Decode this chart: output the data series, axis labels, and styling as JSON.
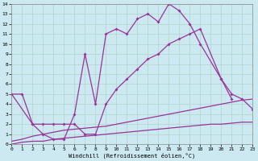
{
  "xlabel": "Windchill (Refroidissement éolien,°C)",
  "xlim": [
    0,
    23
  ],
  "ylim": [
    0,
    14
  ],
  "xticks": [
    0,
    1,
    2,
    3,
    4,
    5,
    6,
    7,
    8,
    9,
    10,
    11,
    12,
    13,
    14,
    15,
    16,
    17,
    18,
    19,
    20,
    21,
    22,
    23
  ],
  "yticks": [
    0,
    1,
    2,
    3,
    4,
    5,
    6,
    7,
    8,
    9,
    10,
    11,
    12,
    13,
    14
  ],
  "background_color": "#cce8f0",
  "grid_color": "#b0d4c8",
  "line_color": "#993399",
  "line_a_x": [
    0,
    1,
    2,
    3,
    4,
    5,
    6,
    7,
    8,
    9,
    10,
    11,
    12,
    13,
    14,
    15,
    16,
    17,
    18,
    20,
    21
  ],
  "line_a_y": [
    5.0,
    5.0,
    2.0,
    1.0,
    0.5,
    0.5,
    3.0,
    9.0,
    4.0,
    11.0,
    11.5,
    11.0,
    12.5,
    13.0,
    12.2,
    14.0,
    13.3,
    12.0,
    10.0,
    6.5,
    4.5
  ],
  "line_b_x": [
    0,
    2,
    3,
    4,
    5,
    6,
    7,
    8,
    9,
    10,
    11,
    12,
    13,
    14,
    15,
    16,
    17,
    18,
    20,
    21,
    22,
    23
  ],
  "line_b_y": [
    5.0,
    2.0,
    2.0,
    2.0,
    2.0,
    2.0,
    1.0,
    1.0,
    4.0,
    5.5,
    6.5,
    7.5,
    8.5,
    9.0,
    10.0,
    10.5,
    11.0,
    11.5,
    6.5,
    5.0,
    4.5,
    3.5
  ],
  "line_c_x": [
    0,
    1,
    2,
    3,
    4,
    5,
    6,
    7,
    8,
    9,
    10,
    11,
    12,
    13,
    14,
    15,
    16,
    17,
    18,
    19,
    20,
    21,
    22,
    23
  ],
  "line_c_y": [
    0.3,
    0.5,
    0.8,
    1.0,
    1.2,
    1.4,
    1.5,
    1.6,
    1.7,
    1.8,
    2.0,
    2.2,
    2.4,
    2.6,
    2.8,
    3.0,
    3.2,
    3.4,
    3.6,
    3.8,
    4.0,
    4.2,
    4.4,
    4.5
  ],
  "line_d_x": [
    0,
    1,
    2,
    3,
    4,
    5,
    6,
    7,
    8,
    9,
    10,
    11,
    12,
    13,
    14,
    15,
    16,
    17,
    18,
    19,
    20,
    21,
    22,
    23
  ],
  "line_d_y": [
    0.0,
    0.2,
    0.3,
    0.3,
    0.5,
    0.6,
    0.7,
    0.8,
    0.9,
    1.0,
    1.1,
    1.2,
    1.3,
    1.4,
    1.5,
    1.6,
    1.7,
    1.8,
    1.9,
    2.0,
    2.0,
    2.1,
    2.2,
    2.2
  ]
}
